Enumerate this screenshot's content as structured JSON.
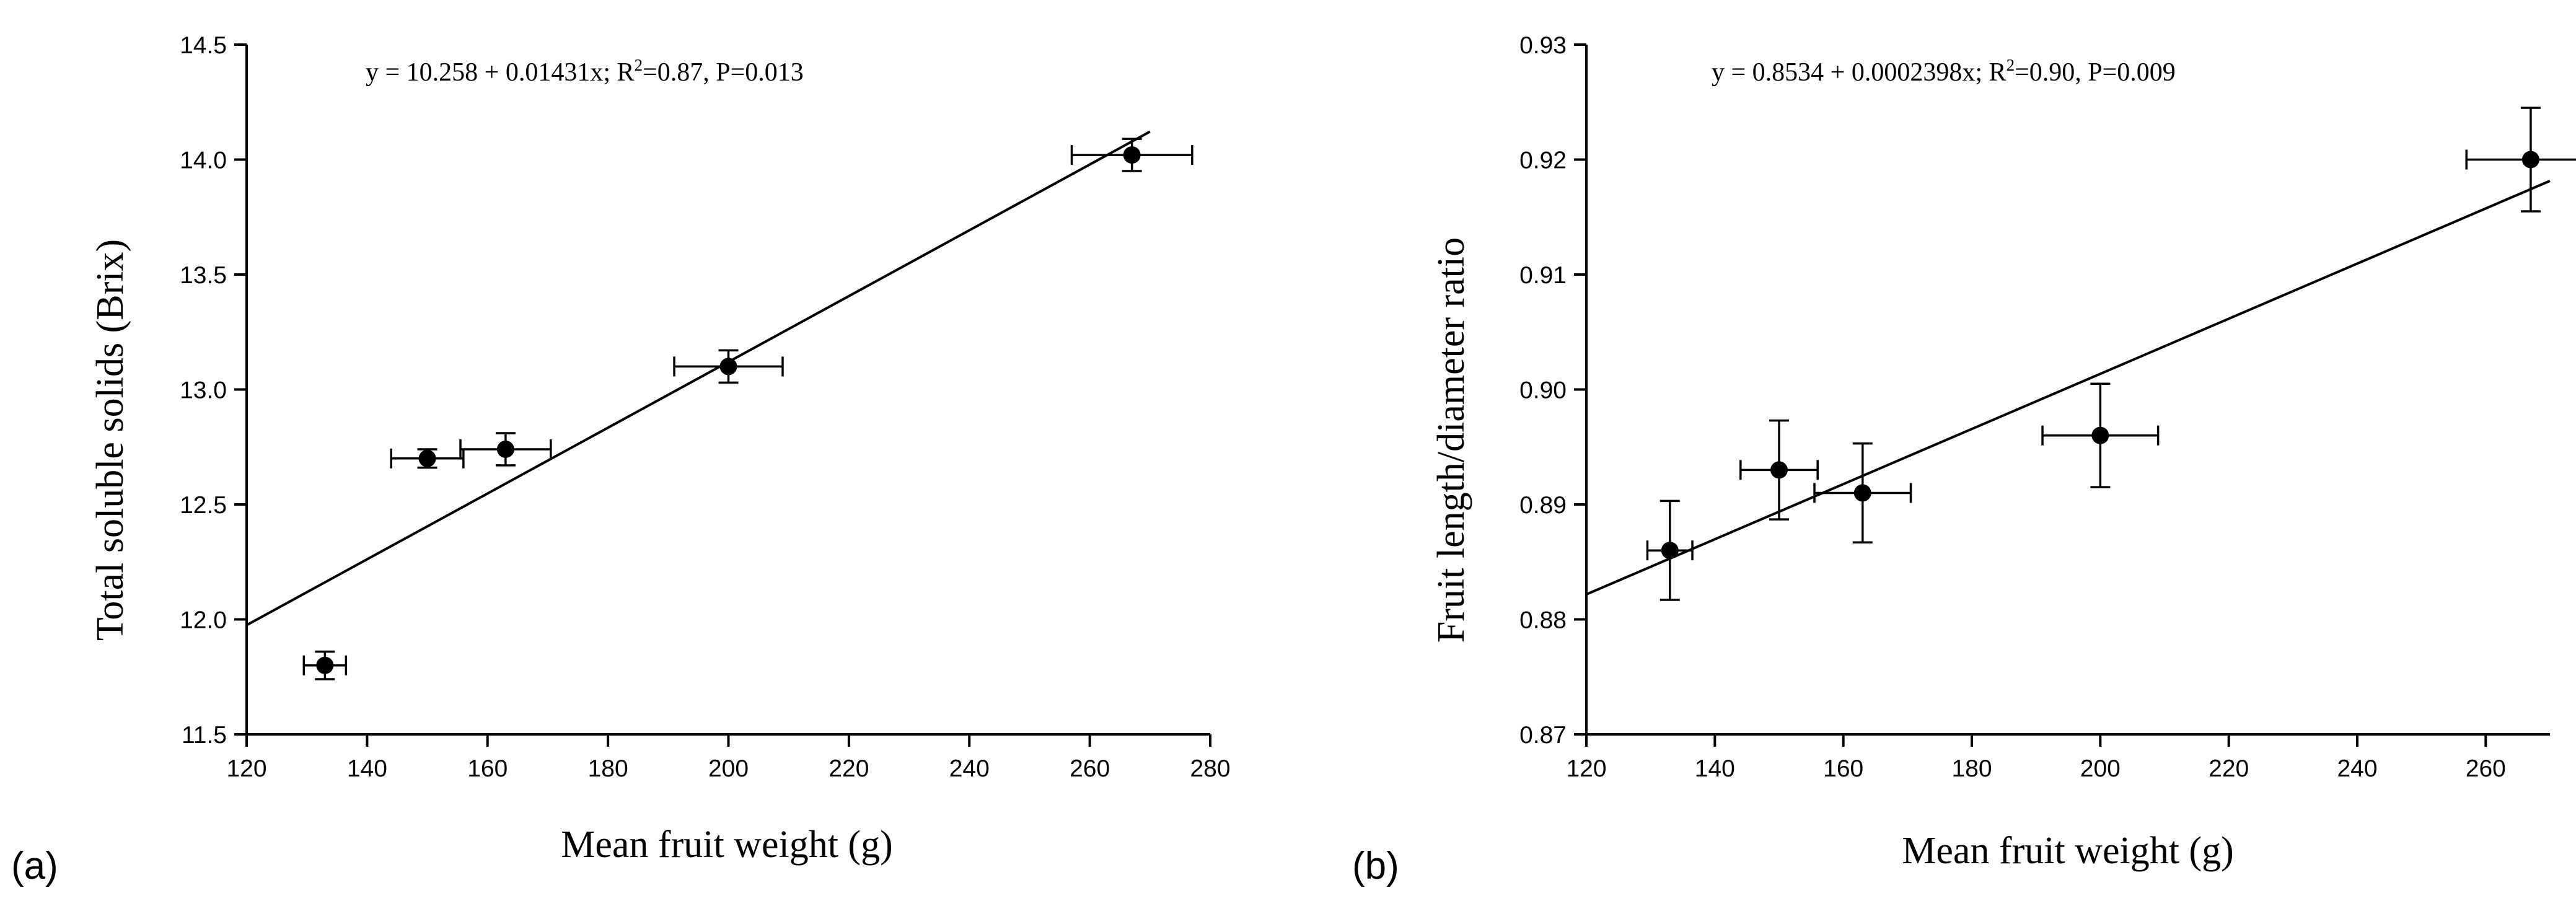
{
  "chart_data": [
    {
      "type": "scatter",
      "panel_label": "(a)",
      "equation": {
        "prefix": "y = 10.258 + 0.01431x; R",
        "sup": "2",
        "suffix": "=0.87, P=0.013"
      },
      "xlabel": "Mean fruit weight (g)",
      "ylabel": "Total soluble solids (Brix)",
      "xlim": [
        120,
        280
      ],
      "ylim": [
        11.5,
        14.5
      ],
      "xticks": [
        "120",
        "140",
        "160",
        "180",
        "200",
        "220",
        "240",
        "260",
        "280"
      ],
      "yticks": [
        "11.5",
        "12.0",
        "12.5",
        "13.0",
        "13.5",
        "14.0",
        "14.5"
      ],
      "points": [
        {
          "x": 133,
          "y": 11.8,
          "xerr": 3.5,
          "yerr": 0.06
        },
        {
          "x": 150,
          "y": 12.7,
          "xerr": 6,
          "yerr": 0.04
        },
        {
          "x": 163,
          "y": 12.74,
          "xerr": 7.5,
          "yerr": 0.07
        },
        {
          "x": 200,
          "y": 13.1,
          "xerr": 9,
          "yerr": 0.07
        },
        {
          "x": 267,
          "y": 14.02,
          "xerr": 10,
          "yerr": 0.07
        }
      ],
      "fit": {
        "intercept": 10.258,
        "slope": 0.01431,
        "x_range": [
          120,
          270
        ]
      },
      "grid": false,
      "legend": "none"
    },
    {
      "type": "scatter",
      "panel_label": "(b)",
      "equation": {
        "prefix": "y = 0.8534 + 0.0002398x; R",
        "sup": "2",
        "suffix": "=0.90, P=0.009"
      },
      "xlabel": "Mean fruit weight (g)",
      "ylabel": "Fruit length/diameter ratio",
      "xlim": [
        120,
        270
      ],
      "ylim": [
        0.87,
        0.93
      ],
      "xticks": [
        "120",
        "140",
        "160",
        "180",
        "200",
        "220",
        "240",
        "260"
      ],
      "yticks": [
        "0.87",
        "0.88",
        "0.89",
        "0.90",
        "0.91",
        "0.92",
        "0.93"
      ],
      "points": [
        {
          "x": 133,
          "y": 0.886,
          "xerr": 3.5,
          "yerr": 0.0043
        },
        {
          "x": 150,
          "y": 0.893,
          "xerr": 6,
          "yerr": 0.0043
        },
        {
          "x": 163,
          "y": 0.891,
          "xerr": 7.5,
          "yerr": 0.0043
        },
        {
          "x": 200,
          "y": 0.896,
          "xerr": 9,
          "yerr": 0.0045
        },
        {
          "x": 267,
          "y": 0.92,
          "xerr": 10,
          "yerr": 0.0045
        }
      ],
      "fit": {
        "intercept": 0.8534,
        "slope": 0.0002398,
        "x_range": [
          120,
          270
        ]
      },
      "grid": false,
      "legend": "none"
    }
  ]
}
